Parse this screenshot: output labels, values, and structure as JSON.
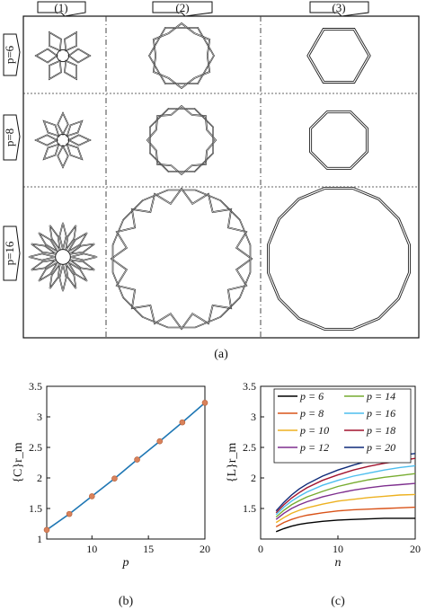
{
  "panel_a": {
    "caption": "(a)",
    "column_labels": [
      "(1)",
      "(2)",
      "(3)"
    ],
    "row_labels": [
      "p=6",
      "p=8",
      "p=16"
    ],
    "rows": [
      6,
      8,
      16
    ]
  },
  "chart_data": [
    {
      "type": "scatter",
      "caption": "(b)",
      "xlabel": "p",
      "ylabel": "{C}r_m",
      "xlim": [
        6,
        20
      ],
      "ylim": [
        1,
        3.5
      ],
      "xticks": [
        10,
        15,
        20
      ],
      "yticks": [
        1,
        1.5,
        2,
        2.5,
        3,
        3.5
      ],
      "line_color": "#1f77b4",
      "marker_color": "#d9825b",
      "x": [
        6,
        8,
        10,
        12,
        14,
        16,
        18,
        20
      ],
      "y": [
        1.15,
        1.41,
        1.7,
        1.99,
        2.3,
        2.6,
        2.91,
        3.23
      ]
    },
    {
      "type": "line",
      "caption": "(c)",
      "xlabel": "n",
      "ylabel": "{L}r_m",
      "xlim": [
        0,
        20
      ],
      "ylim": [
        1,
        3.5
      ],
      "xticks": [
        0,
        10,
        20
      ],
      "yticks": [
        1.5,
        2,
        2.5,
        3,
        3.5
      ],
      "legend_position": "top",
      "x": [
        2,
        3,
        4,
        5,
        6,
        8,
        10,
        12,
        14,
        16,
        18,
        20
      ],
      "series": [
        {
          "name": "p = 6",
          "color": "#000000",
          "y": [
            1.12,
            1.17,
            1.21,
            1.24,
            1.26,
            1.29,
            1.31,
            1.32,
            1.33,
            1.34,
            1.34,
            1.34
          ]
        },
        {
          "name": "p = 8",
          "color": "#d95319",
          "y": [
            1.2,
            1.27,
            1.32,
            1.36,
            1.39,
            1.43,
            1.46,
            1.48,
            1.49,
            1.5,
            1.51,
            1.52
          ]
        },
        {
          "name": "p = 10",
          "color": "#edb120",
          "y": [
            1.27,
            1.35,
            1.42,
            1.47,
            1.51,
            1.57,
            1.62,
            1.65,
            1.68,
            1.7,
            1.72,
            1.73
          ]
        },
        {
          "name": "p = 12",
          "color": "#7e2f8e",
          "y": [
            1.32,
            1.42,
            1.5,
            1.56,
            1.61,
            1.69,
            1.75,
            1.8,
            1.84,
            1.87,
            1.89,
            1.91
          ]
        },
        {
          "name": "p = 14",
          "color": "#77ac30",
          "y": [
            1.36,
            1.47,
            1.56,
            1.63,
            1.69,
            1.78,
            1.86,
            1.92,
            1.97,
            2.01,
            2.04,
            2.07
          ]
        },
        {
          "name": "p = 16",
          "color": "#4dbeee",
          "y": [
            1.4,
            1.52,
            1.62,
            1.7,
            1.77,
            1.88,
            1.96,
            2.03,
            2.08,
            2.13,
            2.17,
            2.2
          ]
        },
        {
          "name": "p = 18",
          "color": "#a2142f",
          "y": [
            1.43,
            1.56,
            1.67,
            1.76,
            1.84,
            1.96,
            2.05,
            2.13,
            2.19,
            2.24,
            2.28,
            2.32
          ]
        },
        {
          "name": "p = 20",
          "color": "#0e2a78",
          "y": [
            1.46,
            1.6,
            1.72,
            1.82,
            1.9,
            2.03,
            2.13,
            2.21,
            2.28,
            2.33,
            2.37,
            2.4
          ]
        }
      ]
    }
  ]
}
